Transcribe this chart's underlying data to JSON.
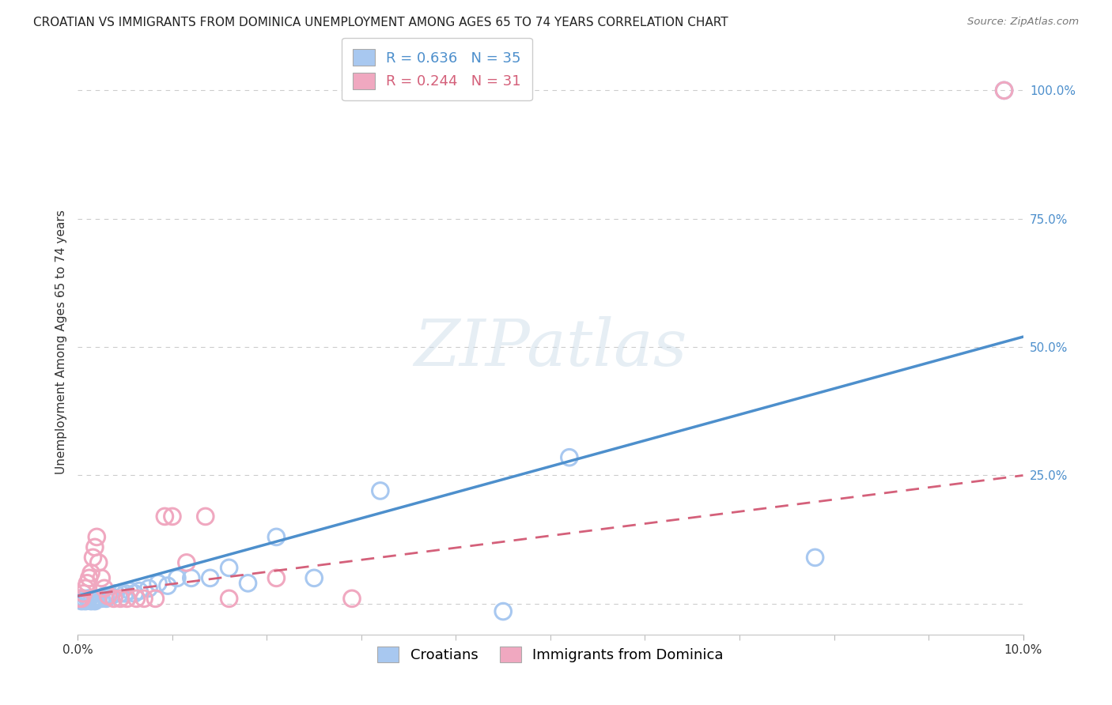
{
  "title": "CROATIAN VS IMMIGRANTS FROM DOMINICA UNEMPLOYMENT AMONG AGES 65 TO 74 YEARS CORRELATION CHART",
  "source": "Source: ZipAtlas.com",
  "ylabel": "Unemployment Among Ages 65 to 74 years",
  "xlim": [
    0.0,
    10.0
  ],
  "ylim": [
    -6.0,
    108.0
  ],
  "ytick_vals": [
    0.0,
    25.0,
    50.0,
    75.0,
    100.0
  ],
  "ytick_labels": [
    "",
    "25.0%",
    "50.0%",
    "75.0%",
    "100.0%"
  ],
  "watermark_text": "ZIPatlas",
  "croatian_color": "#a8c8f0",
  "dominica_color": "#f0a8c0",
  "croatian_line_color": "#4d8fcc",
  "dominica_line_color": "#d4607a",
  "croatian_scatter_x": [
    0.02,
    0.04,
    0.06,
    0.08,
    0.1,
    0.12,
    0.14,
    0.16,
    0.18,
    0.2,
    0.22,
    0.25,
    0.28,
    0.3,
    0.35,
    0.4,
    0.45,
    0.5,
    0.55,
    0.6,
    0.65,
    0.75,
    0.85,
    0.95,
    1.05,
    1.2,
    1.4,
    1.6,
    1.8,
    2.1,
    2.5,
    3.2,
    4.5,
    5.2,
    7.8,
    9.8
  ],
  "croatian_scatter_y": [
    1.0,
    0.5,
    1.0,
    0.5,
    1.0,
    1.0,
    0.5,
    1.0,
    0.5,
    1.0,
    1.0,
    1.0,
    1.5,
    1.0,
    1.5,
    2.0,
    2.0,
    2.0,
    2.5,
    2.0,
    2.5,
    3.0,
    4.0,
    3.5,
    5.0,
    5.0,
    5.0,
    7.0,
    4.0,
    13.0,
    5.0,
    22.0,
    -1.5,
    28.5,
    9.0,
    100.0
  ],
  "dominica_scatter_x": [
    0.02,
    0.04,
    0.06,
    0.08,
    0.1,
    0.12,
    0.14,
    0.16,
    0.18,
    0.2,
    0.22,
    0.25,
    0.28,
    0.32,
    0.38,
    0.45,
    0.52,
    0.62,
    0.7,
    0.82,
    0.92,
    1.0,
    1.15,
    1.35,
    1.6,
    2.1,
    2.9,
    9.8
  ],
  "dominica_scatter_y": [
    1.0,
    1.0,
    2.0,
    3.0,
    4.0,
    5.0,
    6.0,
    9.0,
    11.0,
    13.0,
    8.0,
    5.0,
    3.0,
    1.5,
    1.0,
    1.0,
    1.0,
    1.0,
    1.0,
    1.0,
    17.0,
    17.0,
    8.0,
    17.0,
    1.0,
    5.0,
    1.0,
    100.0
  ],
  "croatian_trend_x": [
    0.0,
    10.0
  ],
  "croatian_trend_y": [
    1.5,
    52.0
  ],
  "dominica_trend_x": [
    0.0,
    10.0
  ],
  "dominica_trend_y": [
    1.5,
    25.0
  ],
  "background_color": "#ffffff",
  "grid_color": "#cccccc",
  "title_fontsize": 11,
  "axis_label_fontsize": 11,
  "tick_fontsize": 11,
  "legend_fontsize": 13
}
